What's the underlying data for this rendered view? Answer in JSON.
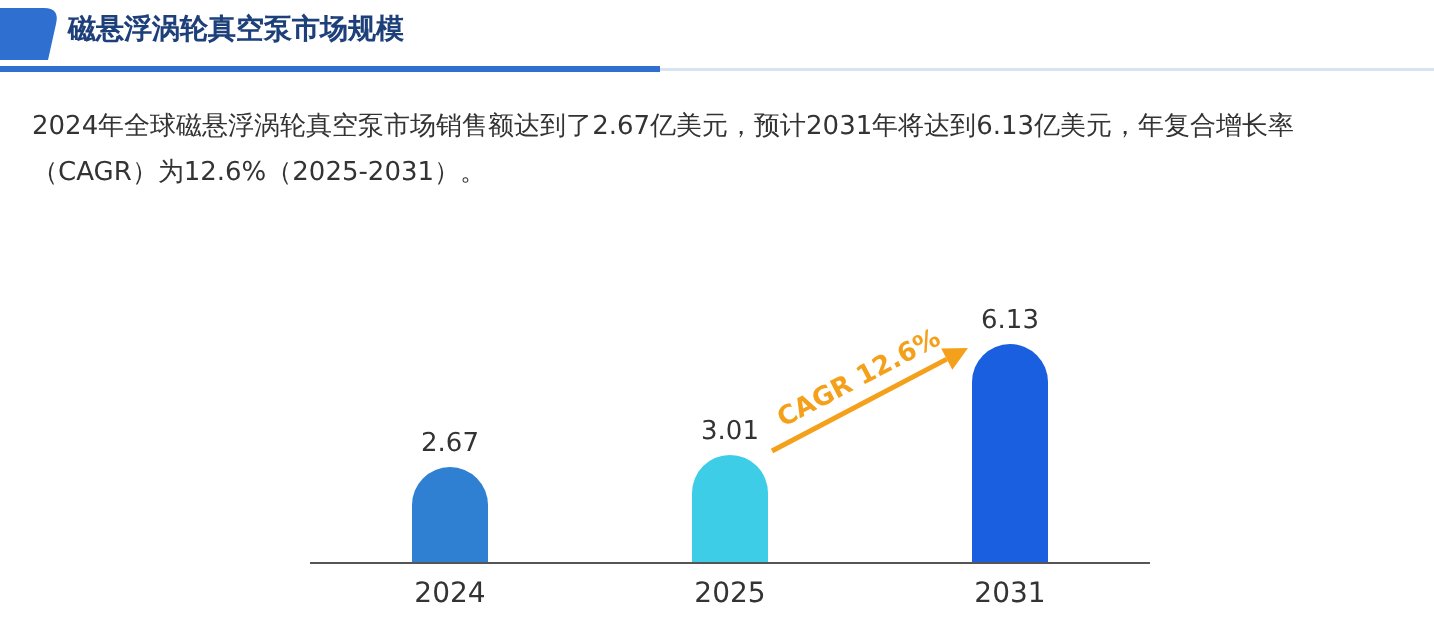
{
  "chart_data": {
    "type": "bar",
    "title": "磁悬浮涡轮真空泵市场规模",
    "subtitle": "2024年全球磁悬浮涡轮真空泵市场销售额达到了2.67亿美元，预计2031年将达到6.13亿美元，年复合增长率（CAGR）为12.6%（2025-2031）。",
    "categories": [
      "2024",
      "2025",
      "2031"
    ],
    "values": [
      2.67,
      3.01,
      6.13
    ],
    "colors": [
      "#2f7fd3",
      "#3ecde6",
      "#1a5fe0"
    ],
    "relative": false,
    "data_labels": true,
    "annotations": [
      "CAGR 12.6%"
    ]
  }
}
